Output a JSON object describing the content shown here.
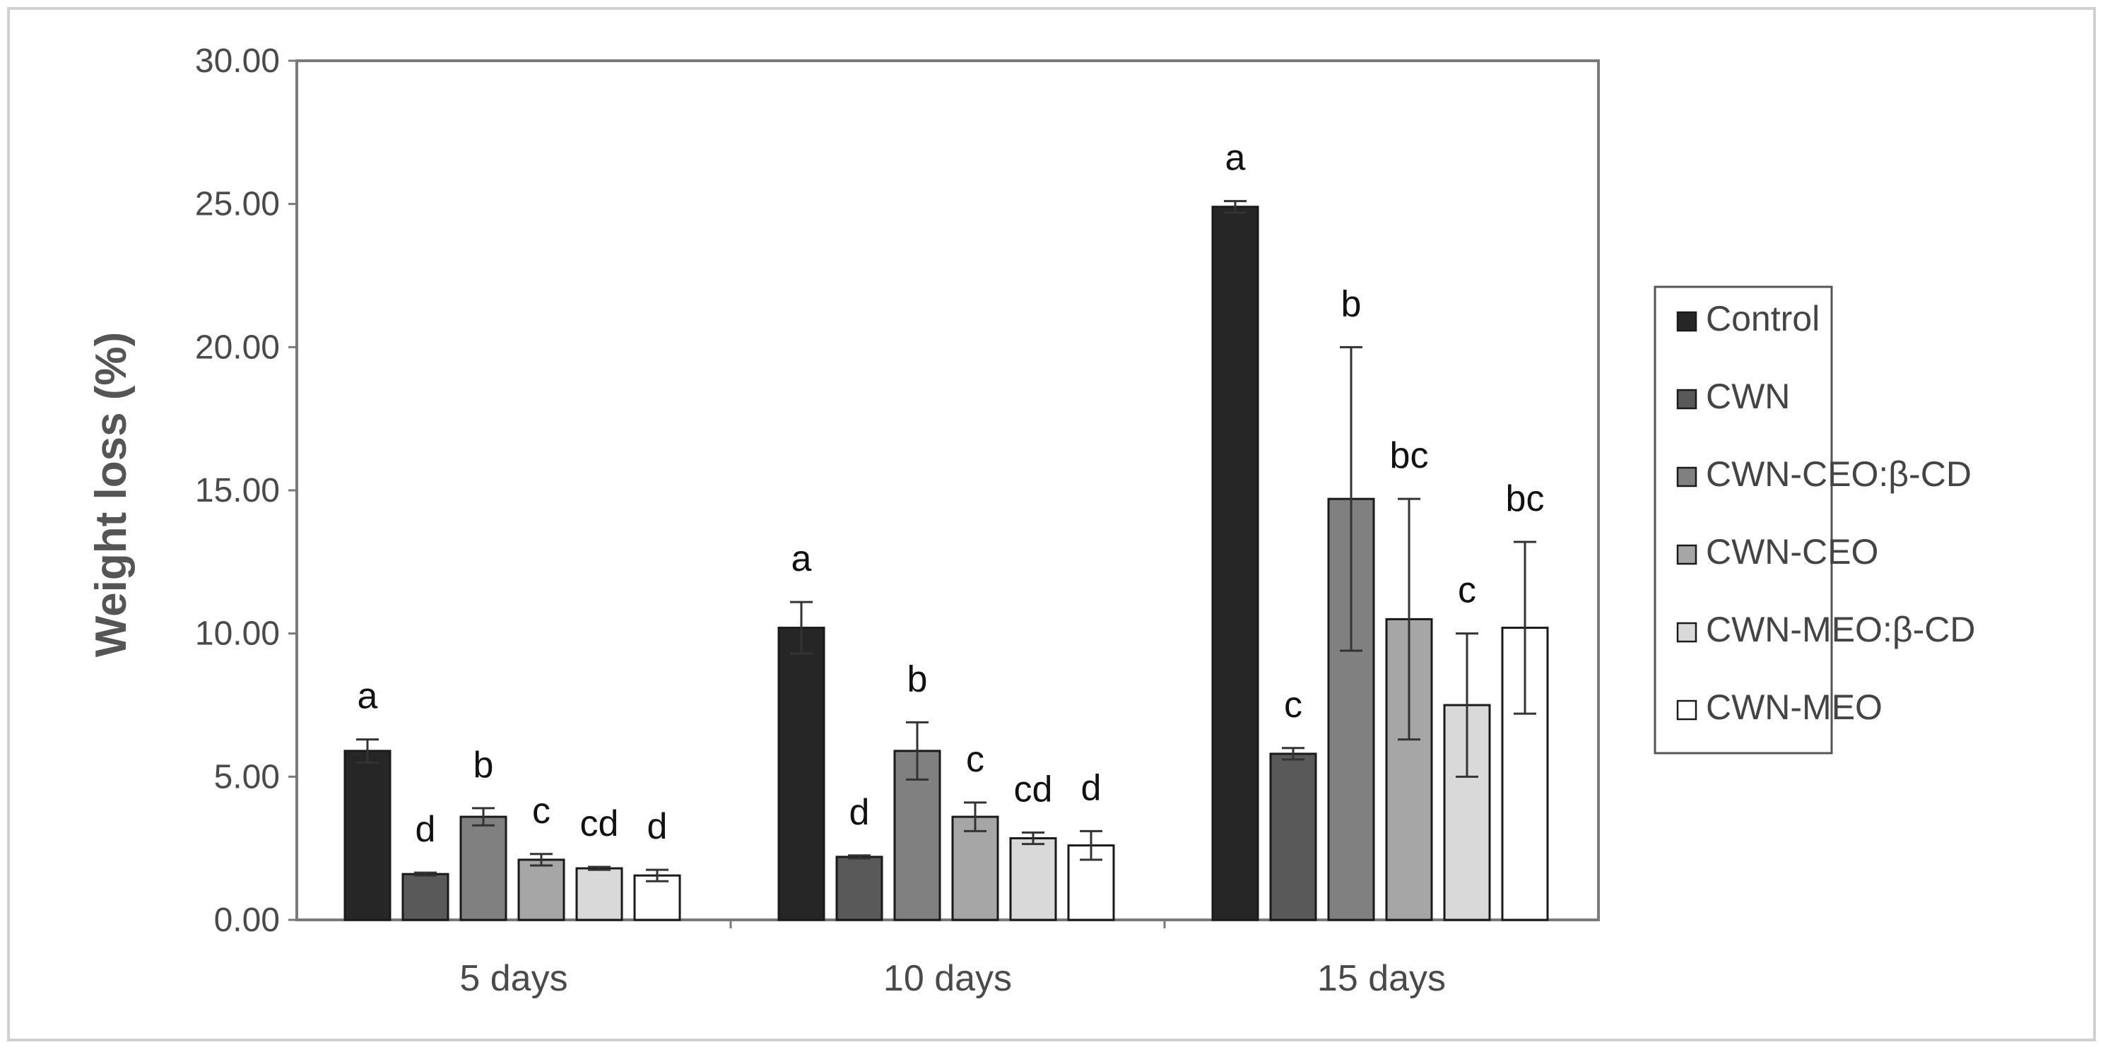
{
  "chart_data": {
    "type": "bar",
    "title": "",
    "xlabel": "",
    "ylabel": "Weight loss (%)",
    "ylim": [
      0,
      30
    ],
    "yticks": [
      "0.00",
      "5.00",
      "10.00",
      "15.00",
      "20.00",
      "25.00",
      "30.00"
    ],
    "categories": [
      "5 days",
      "10 days",
      "15 days"
    ],
    "legend_position": "right",
    "series": [
      {
        "name": "Control",
        "color": "#262626",
        "values": [
          5.9,
          10.2,
          24.9
        ],
        "errors": [
          0.4,
          0.9,
          0.2
        ],
        "labels": [
          "a",
          "a",
          "a"
        ]
      },
      {
        "name": "CWN",
        "color": "#595959",
        "values": [
          1.6,
          2.2,
          5.8
        ],
        "errors": [
          0.05,
          0.05,
          0.2
        ],
        "labels": [
          "d",
          "d",
          "c"
        ]
      },
      {
        "name": "CWN-CEO:β-CD",
        "color": "#808080",
        "values": [
          3.6,
          5.9,
          14.7
        ],
        "errors": [
          0.3,
          1.0,
          5.3
        ],
        "labels": [
          "b",
          "b",
          "b"
        ]
      },
      {
        "name": "CWN-CEO",
        "color": "#a6a6a6",
        "values": [
          2.1,
          3.6,
          10.5
        ],
        "errors": [
          0.2,
          0.5,
          4.2
        ],
        "labels": [
          "c",
          "c",
          "bc"
        ]
      },
      {
        "name": "CWN-MEO:β-CD",
        "color": "#d9d9d9",
        "values": [
          1.8,
          2.85,
          7.5
        ],
        "errors": [
          0.05,
          0.2,
          2.5
        ],
        "labels": [
          "cd",
          "cd",
          "c"
        ]
      },
      {
        "name": "CWN-MEO",
        "color": "#ffffff",
        "values": [
          1.55,
          2.6,
          10.2
        ],
        "errors": [
          0.2,
          0.5,
          3.0
        ],
        "labels": [
          "d",
          "d",
          "bc"
        ]
      }
    ]
  }
}
